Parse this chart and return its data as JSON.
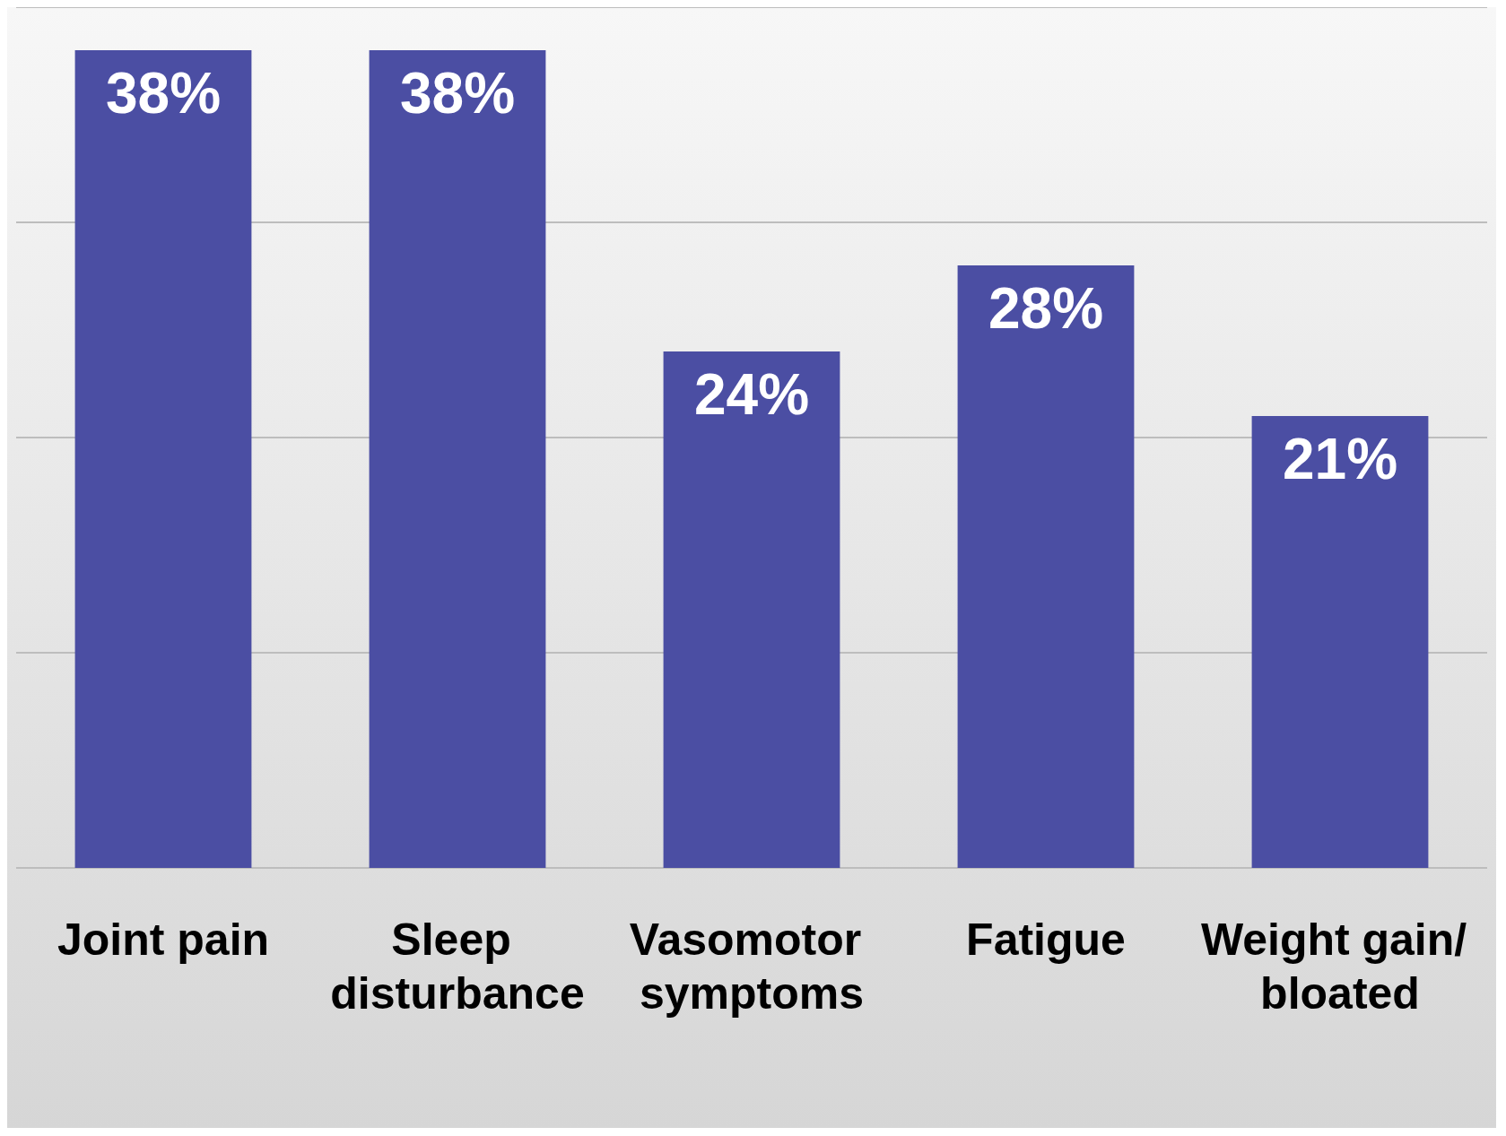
{
  "chart_data": {
    "type": "bar",
    "categories": [
      "Joint pain",
      "Sleep disturbance",
      "Vasomotor symptoms",
      "Fatigue",
      "Weight gain/ bloated"
    ],
    "values": [
      38,
      38,
      24,
      28,
      21
    ],
    "value_labels": [
      "38%",
      "38%",
      "24%",
      "28%",
      "21%"
    ],
    "color": "#4b4ea3",
    "grid": "y",
    "tick_labels": "x"
  }
}
